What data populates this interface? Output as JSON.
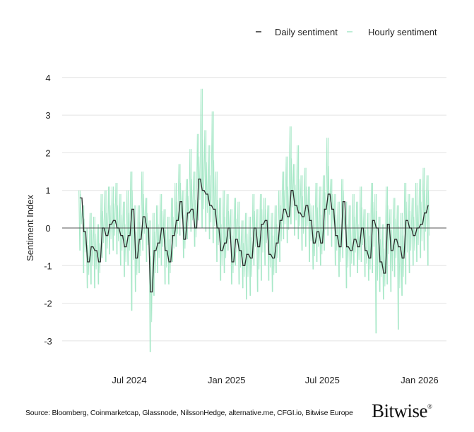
{
  "chart_data": {
    "type": "line",
    "title": "",
    "xlabel": "",
    "ylabel": "Sentiment Index",
    "ylim": [
      -3.3,
      4
    ],
    "yticks": [
      "4",
      "3",
      "2",
      "1",
      "0",
      "-1",
      "-2",
      "-3"
    ],
    "xticks": [
      {
        "label": "Jul 2024",
        "date": "2024-07-01"
      },
      {
        "label": "Jan 2025",
        "date": "2025-01-01"
      },
      {
        "label": "Jul 2025",
        "date": "2025-07-01"
      },
      {
        "label": "Jan 2026",
        "date": "2026-01-01"
      }
    ],
    "grid": true,
    "legend_position": "top-right",
    "dates": [
      "2024-03-30",
      "2024-04-06",
      "2024-04-13",
      "2024-04-20",
      "2024-04-27",
      "2024-05-04",
      "2024-05-11",
      "2024-05-18",
      "2024-05-25",
      "2024-06-01",
      "2024-06-08",
      "2024-06-15",
      "2024-06-22",
      "2024-06-29",
      "2024-07-06",
      "2024-07-13",
      "2024-07-20",
      "2024-07-27",
      "2024-08-03",
      "2024-08-10",
      "2024-08-17",
      "2024-08-24",
      "2024-08-31",
      "2024-09-07",
      "2024-09-14",
      "2024-09-21",
      "2024-09-28",
      "2024-10-05",
      "2024-10-12",
      "2024-10-19",
      "2024-10-26",
      "2024-11-02",
      "2024-11-09",
      "2024-11-16",
      "2024-11-23",
      "2024-11-30",
      "2024-12-07",
      "2024-12-14",
      "2024-12-21",
      "2024-12-28",
      "2025-01-04",
      "2025-01-11",
      "2025-01-18",
      "2025-01-25",
      "2025-02-01",
      "2025-02-08",
      "2025-02-15",
      "2025-02-22",
      "2025-03-01",
      "2025-03-08",
      "2025-03-15",
      "2025-03-22",
      "2025-03-29",
      "2025-04-05",
      "2025-04-12",
      "2025-04-19",
      "2025-04-26",
      "2025-05-03",
      "2025-05-10",
      "2025-05-17",
      "2025-05-24",
      "2025-05-31",
      "2025-06-07",
      "2025-06-14",
      "2025-06-21",
      "2025-06-28",
      "2025-07-05",
      "2025-07-12",
      "2025-07-19",
      "2025-07-26",
      "2025-08-02",
      "2025-08-09",
      "2025-08-16",
      "2025-08-23",
      "2025-08-30",
      "2025-09-06",
      "2025-09-13",
      "2025-09-20",
      "2025-09-27",
      "2025-10-04",
      "2025-10-11",
      "2025-10-18",
      "2025-10-25",
      "2025-11-01",
      "2025-11-08",
      "2025-11-15",
      "2025-11-22",
      "2025-11-29",
      "2025-12-06",
      "2025-12-13",
      "2025-12-20",
      "2025-12-27",
      "2026-01-03",
      "2026-01-10",
      "2026-01-17"
    ],
    "series": [
      {
        "name": "Daily sentiment",
        "color": "#2b2b2b",
        "values": [
          0.8,
          -0.1,
          -0.9,
          -0.5,
          -0.6,
          -0.9,
          0,
          -0.2,
          0.1,
          0.2,
          0,
          -0.2,
          -0.5,
          -0.2,
          0.5,
          -0.8,
          -0.3,
          0.3,
          0,
          -1.7,
          -0.6,
          -0.4,
          0,
          -0.6,
          -0.9,
          -0.2,
          0.2,
          0.7,
          -0.3,
          0.4,
          0.5,
          0,
          1.3,
          1.0,
          0.9,
          0.6,
          0.5,
          0,
          -0.6,
          -0.4,
          0,
          -0.9,
          -0.3,
          -0.6,
          -1.0,
          -0.7,
          -0.8,
          0,
          -0.5,
          0.1,
          0.2,
          -0.7,
          -0.8,
          -0.4,
          0.2,
          0.5,
          0.3,
          1.0,
          0.6,
          0.4,
          0.3,
          0.6,
          0.2,
          -0.4,
          -0.1,
          -0.4,
          0.5,
          0.9,
          0.5,
          -0.2,
          -0.5,
          0.7,
          -0.5,
          -0.6,
          -0.3,
          -0.5,
          0,
          -0.6,
          -0.8,
          0.2,
          0,
          -0.9,
          -1.2,
          0.1,
          -0.6,
          -0.3,
          -0.5,
          -0.8,
          0.2,
          0,
          -0.2,
          0,
          0.1,
          0.4,
          0.6
        ]
      },
      {
        "name": "Hourly sentiment",
        "color": "#a8e8c8",
        "high": [
          1.0,
          0.6,
          0.0,
          0.4,
          0.3,
          0.1,
          0.9,
          1.0,
          1.1,
          1.1,
          1.2,
          0.9,
          0.7,
          1.0,
          1.5,
          0.6,
          0.6,
          1.5,
          0.8,
          0.2,
          0.4,
          0.6,
          0.9,
          0.5,
          0.3,
          0.8,
          1.2,
          1.7,
          1.0,
          1.3,
          2.1,
          1.5,
          2.5,
          3.7,
          2.6,
          2.2,
          3.1,
          1.5,
          0.8,
          1.0,
          0.9,
          0.5,
          0.8,
          0.7,
          0.2,
          0.4,
          0.3,
          0.9,
          0.5,
          0.9,
          0.8,
          0.6,
          0.4,
          0.6,
          1.0,
          1.5,
          1.9,
          2.7,
          1.7,
          2.2,
          1.4,
          1.6,
          1.1,
          0.6,
          1.2,
          1.1,
          1.4,
          2.4,
          1.3,
          0.9,
          0.7,
          1.3,
          0.7,
          0.6,
          0.9,
          0.7,
          1.1,
          0.5,
          0.4,
          1.2,
          0.9,
          0.3,
          0.1,
          1.1,
          0.5,
          0.8,
          0.6,
          0.4,
          1.2,
          0.9,
          0.8,
          1.2,
          1.3,
          1.6,
          1.4
        ],
        "low": [
          -0.6,
          -1.2,
          -1.6,
          -1.5,
          -1.6,
          -1.5,
          -0.8,
          -0.9,
          -0.7,
          -0.6,
          -0.7,
          -1.0,
          -1.3,
          -1.0,
          -2.2,
          -1.7,
          -1.2,
          -0.6,
          -0.9,
          -3.3,
          -1.8,
          -1.2,
          -1.0,
          -1.5,
          -1.5,
          -0.9,
          -0.5,
          -0.2,
          -0.8,
          -0.3,
          -0.1,
          -0.5,
          0.2,
          0.0,
          -0.1,
          -0.3,
          -0.4,
          -0.9,
          -1.4,
          -1.2,
          -0.6,
          -1.5,
          -1.0,
          -1.5,
          -1.6,
          -1.9,
          -1.8,
          -1.0,
          -1.7,
          -1.4,
          -1.0,
          -1.4,
          -1.7,
          -1.2,
          -0.9,
          -0.3,
          -0.4,
          0.1,
          -0.2,
          -0.3,
          -0.6,
          -0.5,
          -0.9,
          -1.1,
          -0.9,
          -1.0,
          -0.6,
          -0.2,
          -0.5,
          -1.0,
          -1.3,
          -0.8,
          -1.6,
          -1.3,
          -1.0,
          -1.2,
          -0.9,
          -1.3,
          -1.4,
          -1.2,
          -2.8,
          -1.7,
          -1.9,
          -1.5,
          -1.7,
          -1.3,
          -2.7,
          -1.8,
          -1.5,
          -1.2,
          -1.0,
          -0.9,
          -0.8,
          -0.6,
          -1.0
        ]
      }
    ]
  },
  "legend": {
    "daily_label": "Daily sentiment",
    "hourly_label": "Hourly sentiment"
  },
  "footer": {
    "source": "Source: Bloomberg, Coinmarketcap, Glassnode, NilssonHedge, alternative.me, CFGI.io, Bitwise Europe",
    "logo": "Bitwise",
    "logo_mark": "®"
  }
}
